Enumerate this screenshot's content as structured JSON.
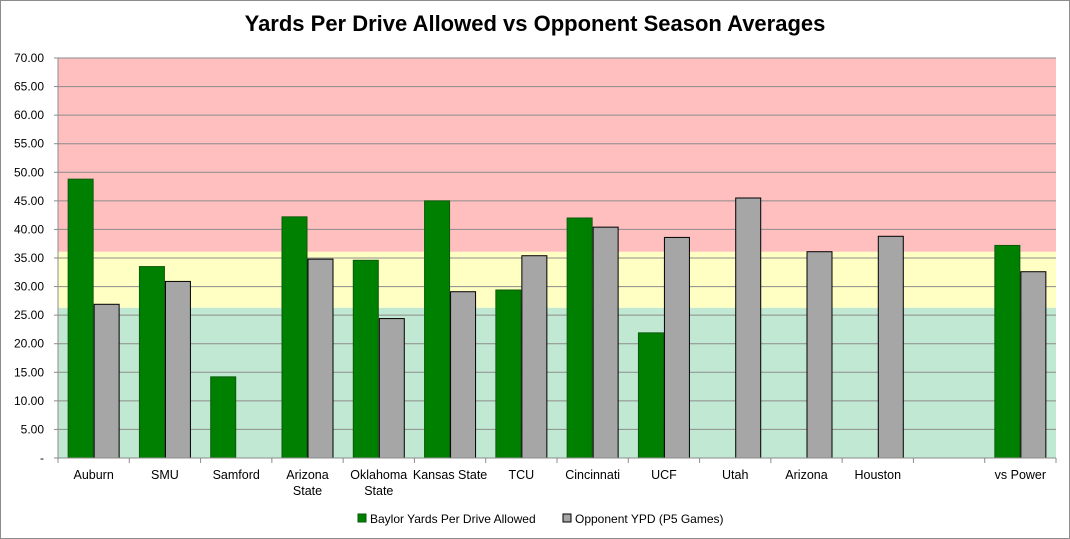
{
  "chart_data": {
    "type": "bar",
    "title": "Yards Per Drive Allowed vs Opponent Season Averages",
    "xlabel": "",
    "ylabel": "",
    "ylim": [
      0,
      70
    ],
    "ytick_step": 5,
    "y_tick_labels": [
      "-",
      "5.00",
      "10.00",
      "15.00",
      "20.00",
      "25.00",
      "30.00",
      "35.00",
      "40.00",
      "45.00",
      "50.00",
      "55.00",
      "60.00",
      "65.00",
      "70.00"
    ],
    "categories": [
      "Auburn",
      "SMU",
      "Samford",
      "Arizona\nState",
      "Oklahoma\nState",
      "Kansas State",
      "TCU",
      "Cincinnati",
      "UCF",
      "Utah",
      "Arizona",
      "Houston",
      "",
      "vs Power"
    ],
    "series": [
      {
        "name": "Baylor Yards Per Drive Allowed",
        "color": "#008000",
        "values": [
          48.8,
          33.5,
          14.2,
          42.2,
          34.6,
          45.0,
          29.4,
          42.0,
          21.9,
          null,
          null,
          null,
          null,
          37.2
        ]
      },
      {
        "name": "Opponent YPD (P5 Games)",
        "color": "#a6a6a6",
        "values": [
          26.9,
          30.9,
          null,
          34.8,
          24.4,
          29.1,
          35.4,
          40.4,
          38.6,
          45.5,
          36.1,
          38.8,
          null,
          32.6
        ]
      }
    ],
    "bands": [
      {
        "from": 0,
        "to": 26.3,
        "color": "#c1e8d3"
      },
      {
        "from": 26.3,
        "to": 36.1,
        "color": "#ffffc3"
      },
      {
        "from": 36.1,
        "to": 70,
        "color": "#ffbfbf"
      }
    ],
    "grid": true,
    "legend": "bottom"
  }
}
